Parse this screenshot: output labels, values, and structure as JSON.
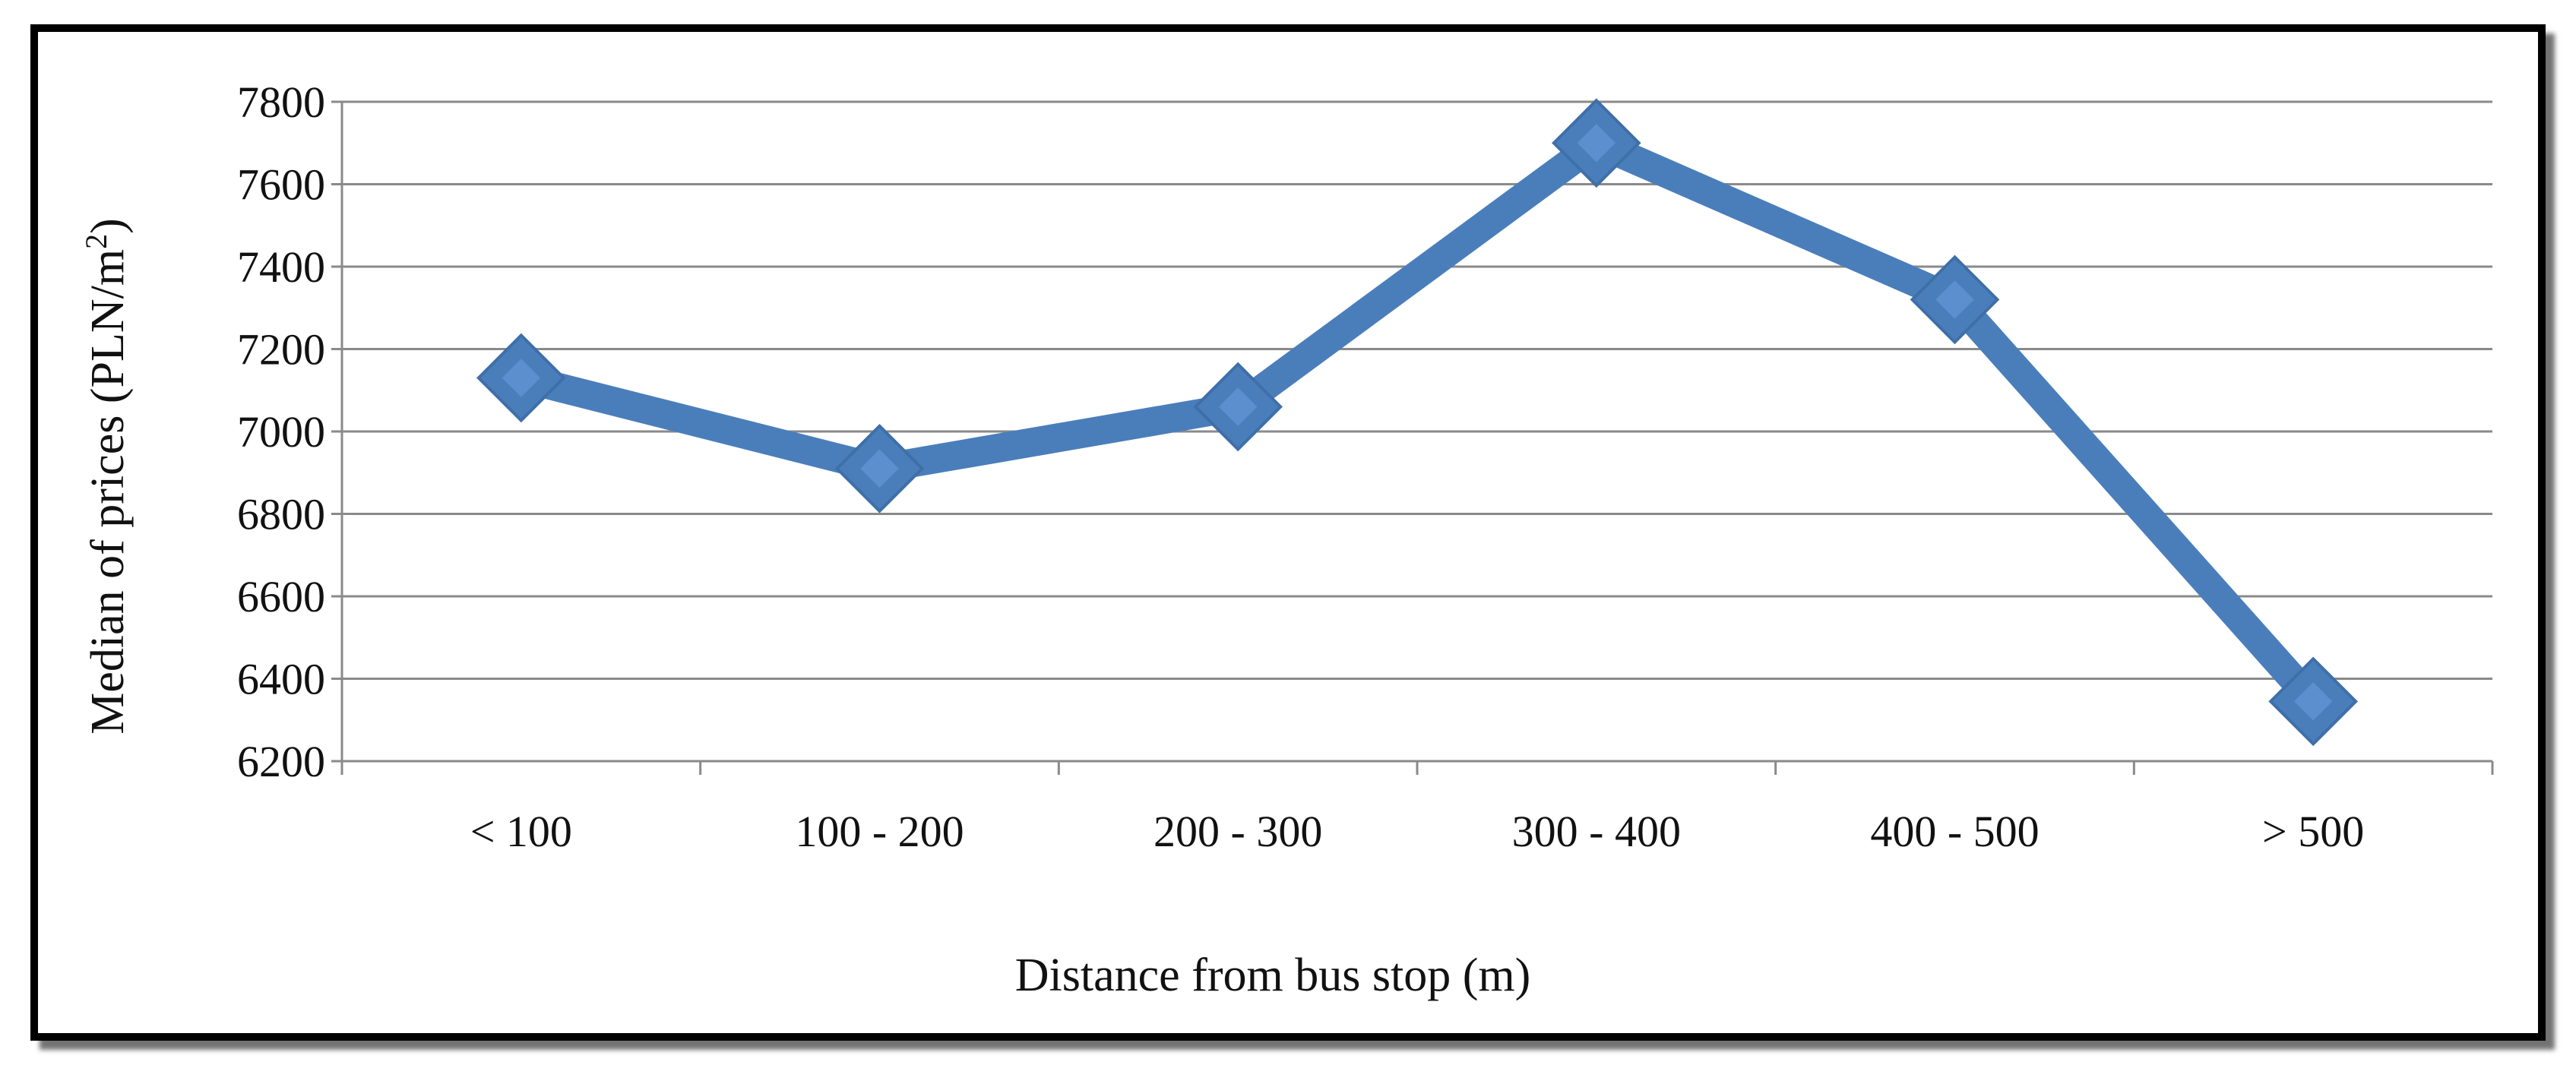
{
  "chart_data": {
    "type": "line",
    "categories": [
      "< 100",
      "100 - 200",
      "200 - 300",
      "300 - 400",
      "400 - 500",
      "> 500"
    ],
    "series": [
      {
        "values": [
          7130,
          6910,
          7060,
          7700,
          7320,
          6345
        ]
      }
    ],
    "xlabel": "Distance from bus stop (m)",
    "ylabel": "Median of prices (PLN/m²)",
    "ylabel_main": "Median of prices (PLN/m",
    "ylabel_sup": "2",
    "ylabel_end": ")",
    "ylim": [
      6200,
      7800
    ],
    "yticks": [
      6200,
      6400,
      6600,
      6800,
      7000,
      7200,
      7400,
      7600,
      7800
    ],
    "grid": true,
    "legend": "none",
    "color": "#4a7ebb"
  }
}
